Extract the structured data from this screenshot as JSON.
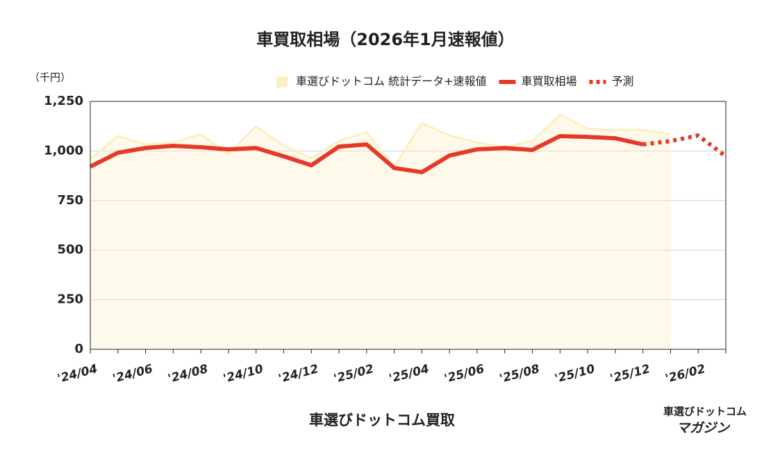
{
  "chart_data": {
    "type": "line",
    "title": "車買取相場（2026年1月速報値）",
    "y_unit": "（千円）",
    "x_label": "車選びドットコム買取",
    "watermark": [
      "車選びドットコム",
      "マガジン"
    ],
    "categories": [
      "'24/04",
      null,
      "'24/06",
      null,
      "'24/08",
      null,
      "'24/10",
      null,
      "'24/12",
      null,
      "'25/02",
      null,
      "'25/04",
      null,
      "'25/06",
      null,
      "'25/08",
      null,
      "'25/10",
      null,
      "'25/12",
      null,
      "'26/02",
      null
    ],
    "series": [
      {
        "name": "車選びドットコム 統計データ+速報値",
        "style": "area",
        "color": "#fdeec2",
        "values": [
          960,
          1075,
          1033,
          1043,
          1085,
          984,
          1124,
          1026,
          963,
          1050,
          1096,
          920,
          1141,
          1078,
          1043,
          1019,
          1050,
          1183,
          1113,
          1106,
          1106,
          1085,
          null,
          null
        ]
      },
      {
        "name": "車買取相場",
        "style": "solid",
        "color": "#e53a2a",
        "values": [
          921,
          991,
          1015,
          1026,
          1019,
          1008,
          1015,
          973,
          928,
          1022,
          1033,
          914,
          893,
          977,
          1008,
          1015,
          1005,
          1075,
          1071,
          1064,
          1033,
          null,
          null,
          null
        ]
      },
      {
        "name": "予測",
        "style": "dotted",
        "color": "#e53a2a",
        "values": [
          null,
          null,
          null,
          null,
          null,
          null,
          null,
          null,
          null,
          null,
          null,
          null,
          null,
          null,
          null,
          null,
          null,
          null,
          null,
          null,
          1033,
          1050,
          1078,
          973
        ]
      }
    ],
    "ylim": [
      0,
      1250
    ],
    "yticks": [
      0,
      250,
      500,
      750,
      {
        "value": 1000,
        "label": "1,000"
      },
      {
        "value": 1250,
        "label": "1,250"
      }
    ],
    "grid": true
  }
}
